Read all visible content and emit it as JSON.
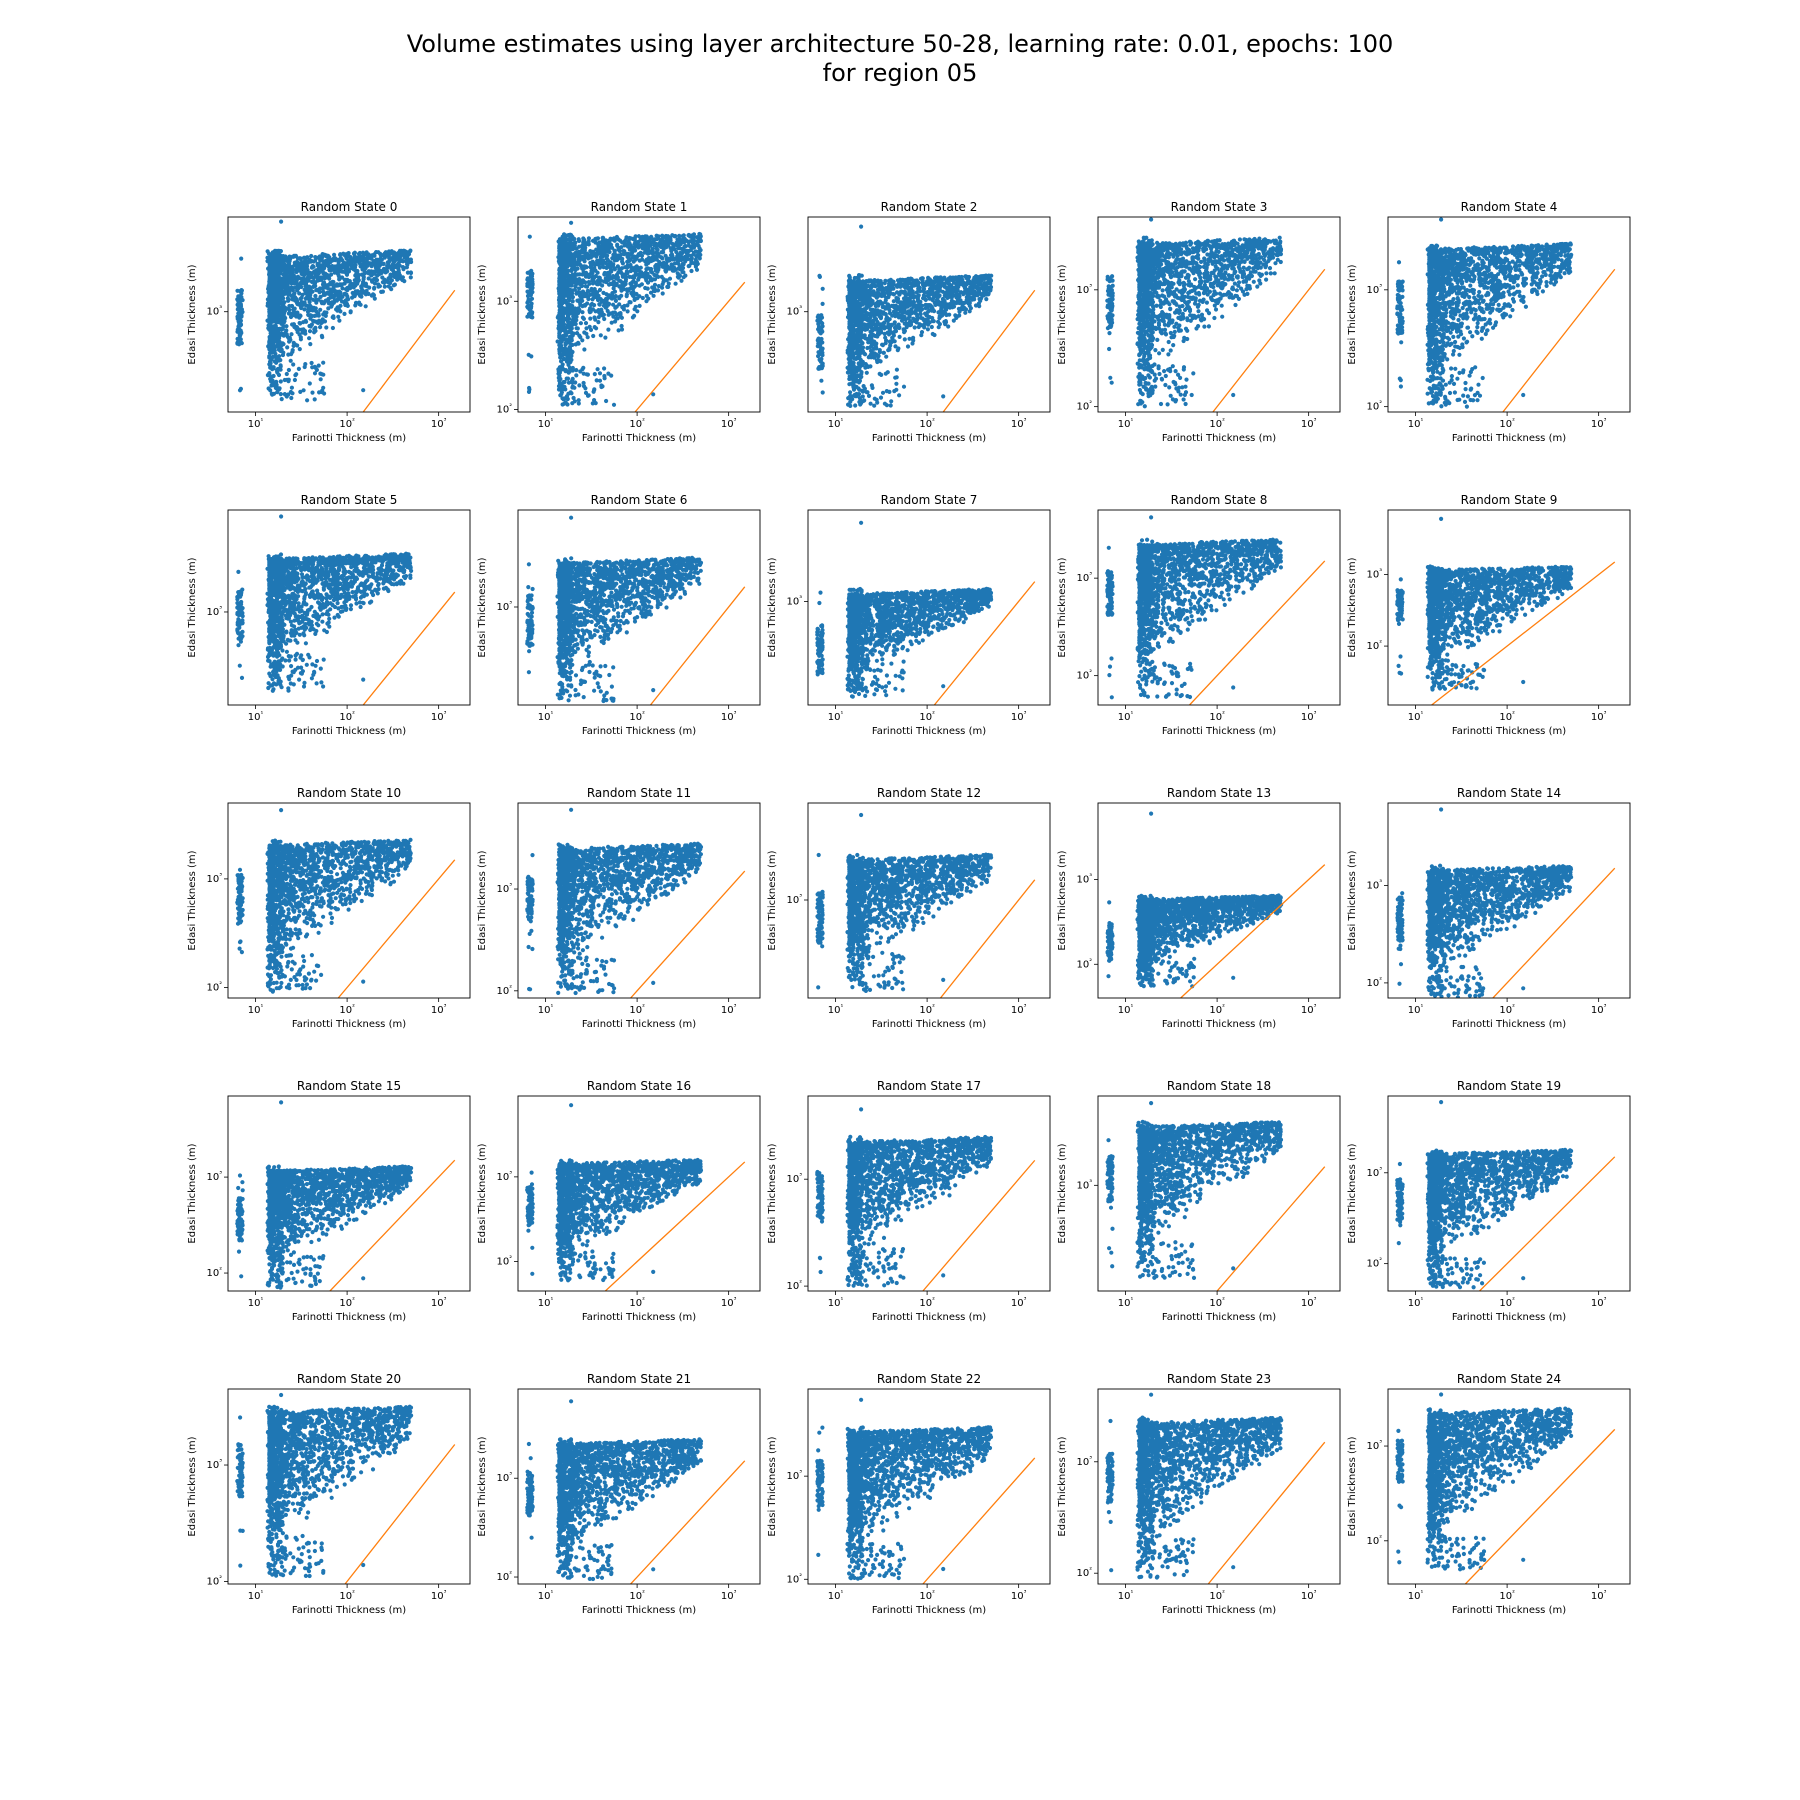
{
  "figure": {
    "title_line1": "Volume estimates using layer architecture 50-28, learning rate: 0.01, epochs: 100",
    "title_line2": "for region 05"
  },
  "colors": {
    "scatter": "#1f77b4",
    "reference_line": "#ff7f0e",
    "axes": "#000000"
  },
  "chart_data": {
    "type": "scatter",
    "layout": {
      "rows": 5,
      "cols": 5
    },
    "xlabel": "Farinotti Thickness (m)",
    "ylabel": "Edasi Thickness (m)",
    "xscale": "log",
    "yscale": "log",
    "xlim": [
      5,
      2200
    ],
    "x_ticks": [
      10,
      100,
      1000
    ],
    "x_tick_labels": [
      "10¹",
      "10²",
      "10³"
    ],
    "reference_line": "y = x",
    "panels": [
      {
        "title": "Random State 0",
        "ylim": [
          150,
          6000
        ],
        "y_ticks": [
          1000
        ],
        "y_tick_labels": [
          "10³"
        ],
        "scatter": {
          "ymin": 200,
          "ymax": 3200,
          "floor": 180,
          "outlier": 5500
        }
      },
      {
        "title": "Random State 1",
        "ylim": [
          95,
          6000
        ],
        "y_ticks": [
          100,
          1000
        ],
        "y_tick_labels": [
          "10²",
          "10³"
        ],
        "scatter": {
          "ymin": 110,
          "ymax": 4200,
          "floor": 110,
          "outlier": 5300
        }
      },
      {
        "title": "Random State 2",
        "ylim": [
          150,
          6000
        ],
        "y_ticks": [
          1000
        ],
        "y_tick_labels": [
          "10³"
        ],
        "scatter": {
          "ymin": 170,
          "ymax": 2000,
          "floor": 160,
          "outlier": 5000
        }
      },
      {
        "title": "Random State 3",
        "ylim": [
          90,
          4200
        ],
        "y_ticks": [
          100,
          1000
        ],
        "y_tick_labels": [
          "10²",
          "10³"
        ],
        "scatter": {
          "ymin": 100,
          "ymax": 2800,
          "floor": 100,
          "outlier": 4000
        }
      },
      {
        "title": "Random State 4",
        "ylim": [
          90,
          4200
        ],
        "y_ticks": [
          100,
          1000
        ],
        "y_tick_labels": [
          "10²",
          "10³"
        ],
        "scatter": {
          "ymin": 100,
          "ymax": 2500,
          "floor": 100,
          "outlier": 4000
        }
      },
      {
        "title": "Random State 5",
        "ylim": [
          150,
          8000
        ],
        "y_ticks": [
          1000
        ],
        "y_tick_labels": [
          "10³"
        ],
        "scatter": {
          "ymin": 200,
          "ymax": 3300,
          "floor": 200,
          "outlier": 7000
        }
      },
      {
        "title": "Random State 6",
        "ylim": [
          140,
          7000
        ],
        "y_ticks": [
          1000
        ],
        "y_tick_labels": [
          "10³"
        ],
        "scatter": {
          "ymin": 160,
          "ymax": 2700,
          "floor": 150,
          "outlier": 6000
        }
      },
      {
        "title": "Random State 7",
        "ylim": [
          120,
          6500
        ],
        "y_ticks": [
          1000
        ],
        "y_tick_labels": [
          "10³"
        ],
        "scatter": {
          "ymin": 150,
          "ymax": 1300,
          "floor": 140,
          "outlier": 5000
        }
      },
      {
        "title": "Random State 8",
        "ylim": [
          50,
          5000
        ],
        "y_ticks": [
          100,
          1000
        ],
        "y_tick_labels": [
          "10²",
          "10³"
        ],
        "scatter": {
          "ymin": 70,
          "ymax": 2500,
          "floor": 60,
          "outlier": 4200
        }
      },
      {
        "title": "Random State 9",
        "ylim": [
          15,
          8000
        ],
        "y_ticks": [
          100,
          1000
        ],
        "y_tick_labels": [
          "10²",
          "10³"
        ],
        "scatter": {
          "ymin": 22,
          "ymax": 1300,
          "floor": 25,
          "outlier": 6000
        }
      },
      {
        "title": "Random State 10",
        "ylim": [
          80,
          5000
        ],
        "y_ticks": [
          100,
          1000
        ],
        "y_tick_labels": [
          "10²",
          "10³"
        ],
        "scatter": {
          "ymin": 90,
          "ymax": 2300,
          "floor": 90,
          "outlier": 4300
        }
      },
      {
        "title": "Random State 11",
        "ylim": [
          85,
          7000
        ],
        "y_ticks": [
          100,
          1000
        ],
        "y_tick_labels": [
          "10²",
          "10³"
        ],
        "scatter": {
          "ymin": 95,
          "ymax": 2800,
          "floor": 95,
          "outlier": 6000
        }
      },
      {
        "title": "Random State 12",
        "ylim": [
          140,
          7000
        ],
        "y_ticks": [
          1000
        ],
        "y_tick_labels": [
          "10³"
        ],
        "scatter": {
          "ymin": 170,
          "ymax": 2500,
          "floor": 160,
          "outlier": 5500
        }
      },
      {
        "title": "Random State 13",
        "ylim": [
          40,
          8000
        ],
        "y_ticks": [
          100,
          1000
        ],
        "y_tick_labels": [
          "10²",
          "10³"
        ],
        "scatter": {
          "ymin": 55,
          "ymax": 650,
          "floor": 55,
          "outlier": 6000
        }
      },
      {
        "title": "Random State 14",
        "ylim": [
          70,
          7000
        ],
        "y_ticks": [
          100,
          1000
        ],
        "y_tick_labels": [
          "10²",
          "10³"
        ],
        "scatter": {
          "ymin": 70,
          "ymax": 1600,
          "floor": 70,
          "outlier": 6000
        }
      },
      {
        "title": "Random State 15",
        "ylim": [
          65,
          7000
        ],
        "y_ticks": [
          100,
          1000
        ],
        "y_tick_labels": [
          "10²",
          "10³"
        ],
        "scatter": {
          "ymin": 70,
          "ymax": 1300,
          "floor": 70,
          "outlier": 6000
        }
      },
      {
        "title": "Random State 16",
        "ylim": [
          45,
          9000
        ],
        "y_ticks": [
          100,
          1000
        ],
        "y_tick_labels": [
          "10²",
          "10³"
        ],
        "scatter": {
          "ymin": 60,
          "ymax": 1600,
          "floor": 60,
          "outlier": 7000
        }
      },
      {
        "title": "Random State 17",
        "ylim": [
          90,
          6000
        ],
        "y_ticks": [
          100,
          1000
        ],
        "y_tick_labels": [
          "10²",
          "10³"
        ],
        "scatter": {
          "ymin": 100,
          "ymax": 2500,
          "floor": 100,
          "outlier": 4500
        }
      },
      {
        "title": "Random State 18",
        "ylim": [
          100,
          7000
        ],
        "y_ticks": [
          1000
        ],
        "y_tick_labels": [
          "10³"
        ],
        "scatter": {
          "ymin": 150,
          "ymax": 4000,
          "floor": 130,
          "outlier": 6000
        }
      },
      {
        "title": "Random State 19",
        "ylim": [
          50,
          7000
        ],
        "y_ticks": [
          100,
          1000
        ],
        "y_tick_labels": [
          "10²",
          "10³"
        ],
        "scatter": {
          "ymin": 55,
          "ymax": 1800,
          "floor": 55,
          "outlier": 6000
        }
      },
      {
        "title": "Random State 20",
        "ylim": [
          95,
          4500
        ],
        "y_ticks": [
          100,
          1000
        ],
        "y_tick_labels": [
          "10²",
          "10³"
        ],
        "scatter": {
          "ymin": 110,
          "ymax": 3200,
          "floor": 110,
          "outlier": 4000
        }
      },
      {
        "title": "Random State 21",
        "ylim": [
          85,
          8000
        ],
        "y_ticks": [
          100,
          1000
        ],
        "y_tick_labels": [
          "10²",
          "10³"
        ],
        "scatter": {
          "ymin": 95,
          "ymax": 2500,
          "floor": 95,
          "outlier": 6000
        }
      },
      {
        "title": "Random State 22",
        "ylim": [
          90,
          7000
        ],
        "y_ticks": [
          100,
          1000
        ],
        "y_tick_labels": [
          "10²",
          "10³"
        ],
        "scatter": {
          "ymin": 100,
          "ymax": 3000,
          "floor": 100,
          "outlier": 5500
        }
      },
      {
        "title": "Random State 23",
        "ylim": [
          80,
          4500
        ],
        "y_ticks": [
          100,
          1000
        ],
        "y_tick_labels": [
          "10²",
          "10³"
        ],
        "scatter": {
          "ymin": 90,
          "ymax": 2500,
          "floor": 90,
          "outlier": 4000
        }
      },
      {
        "title": "Random State 24",
        "ylim": [
          35,
          4000
        ],
        "y_ticks": [
          100,
          1000
        ],
        "y_tick_labels": [
          "10²",
          "10³"
        ],
        "scatter": {
          "ymin": 50,
          "ymax": 2500,
          "floor": 50,
          "outlier": 3500
        }
      }
    ]
  }
}
